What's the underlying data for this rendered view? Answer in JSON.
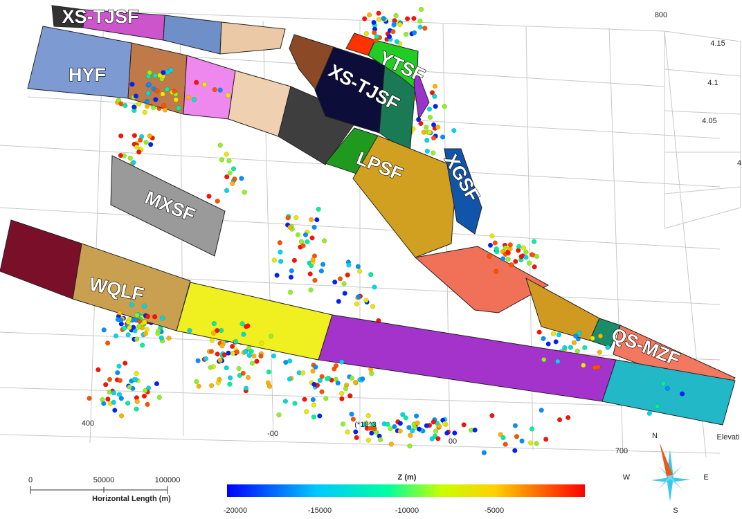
{
  "faults": [
    "XS-TJSF",
    "HYF",
    "XS-TJSF",
    "YTSF",
    "LPSF",
    "XGSF",
    "MXSF",
    "WQLF",
    "QS-MZF"
  ],
  "axes": {
    "top": "800",
    "right": [
      "4.15",
      "4.1",
      "4.05",
      "4"
    ],
    "bottom": [
      "400",
      "-00",
      "00",
      "700"
    ],
    "elevation": "Elevati",
    "scale_note": "(*10^3"
  },
  "scale_bar": {
    "ticks": [
      "0",
      "50000",
      "100000"
    ],
    "label": "Horizontal Length (m)"
  },
  "colorbar": {
    "title": "Z (m)",
    "ticks": [
      "-20000",
      "-15000",
      "-10000",
      "-5000"
    ]
  },
  "compass": {
    "n": "N",
    "s": "S",
    "w": "W",
    "e": "E"
  }
}
